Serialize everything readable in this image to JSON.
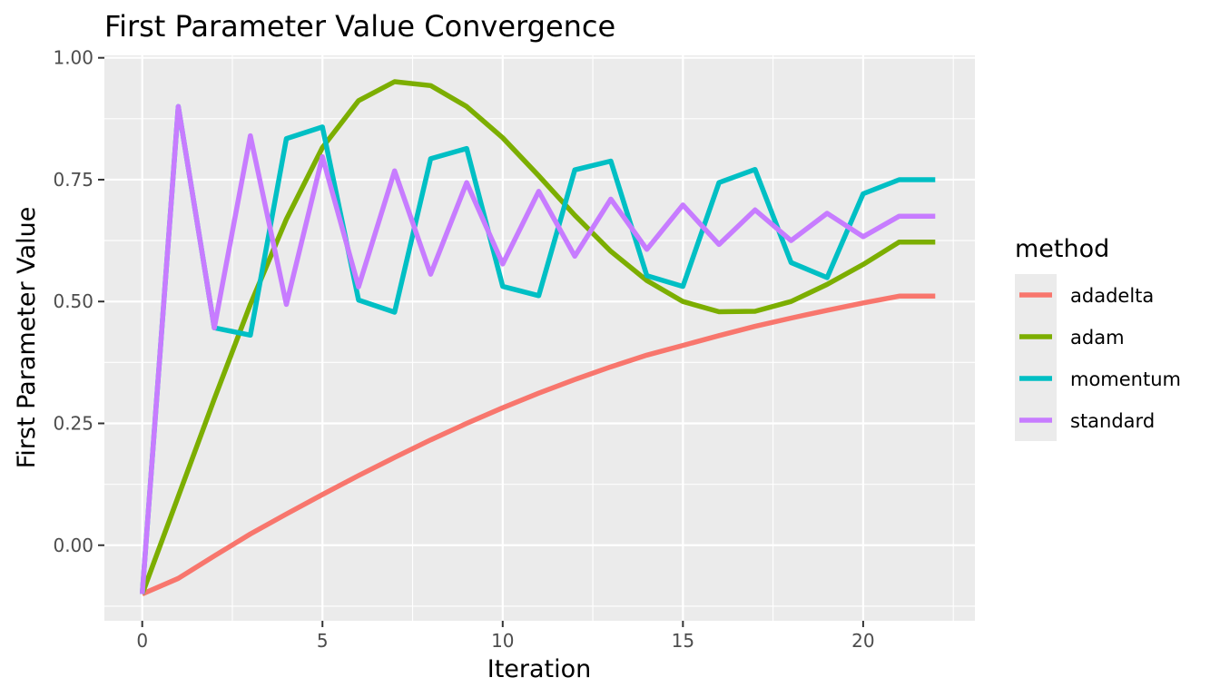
{
  "chart_data": {
    "type": "line",
    "title": "First Parameter Value Convergence",
    "xlabel": "Iteration",
    "ylabel": "First Parameter Value",
    "xlim": [
      -1.05,
      23.1
    ],
    "ylim": [
      -0.155,
      1.005
    ],
    "x_ticks": [
      0,
      5,
      10,
      15,
      20
    ],
    "x_tick_labels": [
      "0",
      "5",
      "10",
      "15",
      "20"
    ],
    "y_ticks": [
      0,
      0.25,
      0.5,
      0.75,
      1.0
    ],
    "y_tick_labels": [
      "0.00",
      "0.25",
      "0.50",
      "0.75",
      "1.00"
    ],
    "grid": true,
    "legend": {
      "title": "method",
      "position": "right"
    },
    "x": [
      0,
      1,
      2,
      3,
      4,
      5,
      6,
      7,
      8,
      9,
      10,
      11,
      12,
      13,
      14,
      15,
      16,
      17,
      18,
      19,
      20,
      21,
      22
    ],
    "series": [
      {
        "name": "adadelta",
        "color": "#F8766D",
        "values": [
          -0.1,
          -0.068,
          -0.022,
          0.023,
          0.064,
          0.104,
          0.143,
          0.18,
          0.216,
          0.25,
          0.282,
          0.312,
          0.34,
          0.366,
          0.39,
          0.41,
          0.43,
          0.449,
          0.466,
          0.482,
          0.497,
          0.511,
          0.511
        ]
      },
      {
        "name": "adam",
        "color": "#7CAE00",
        "values": [
          -0.1,
          0.1,
          0.3,
          0.494,
          0.669,
          0.816,
          0.912,
          0.951,
          0.943,
          0.9,
          0.836,
          0.758,
          0.677,
          0.603,
          0.543,
          0.5,
          0.479,
          0.48,
          0.5,
          0.535,
          0.576,
          0.622,
          0.622
        ]
      },
      {
        "name": "momentum",
        "color": "#00BFC4",
        "values": [
          -0.1,
          0.9,
          0.446,
          0.431,
          0.834,
          0.858,
          0.503,
          0.478,
          0.793,
          0.814,
          0.531,
          0.512,
          0.77,
          0.788,
          0.553,
          0.531,
          0.744,
          0.771,
          0.58,
          0.549,
          0.721,
          0.75,
          0.75
        ]
      },
      {
        "name": "standard",
        "color": "#C77CFF",
        "values": [
          -0.1,
          0.9,
          0.446,
          0.84,
          0.494,
          0.797,
          0.53,
          0.768,
          0.556,
          0.744,
          0.577,
          0.726,
          0.593,
          0.71,
          0.607,
          0.698,
          0.617,
          0.688,
          0.625,
          0.681,
          0.633,
          0.675,
          0.675
        ]
      }
    ]
  }
}
